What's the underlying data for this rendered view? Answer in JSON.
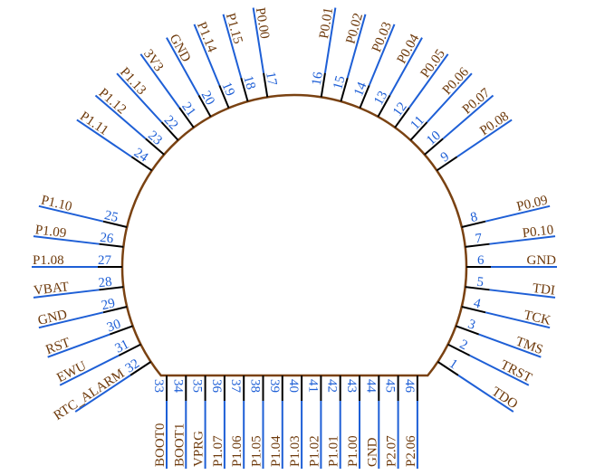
{
  "colors": {
    "body": "#7a4212",
    "label": "#6e3a0c",
    "pin": "#1e5fd6",
    "number": "#1e5fd6",
    "pin_stub": "#000000"
  },
  "pins": [
    {
      "number": "1",
      "label": "TDO"
    },
    {
      "number": "2",
      "label": "TRST"
    },
    {
      "number": "3",
      "label": "TMS"
    },
    {
      "number": "4",
      "label": "TCK"
    },
    {
      "number": "5",
      "label": "TDI"
    },
    {
      "number": "6",
      "label": "GND"
    },
    {
      "number": "7",
      "label": "P0.10"
    },
    {
      "number": "8",
      "label": "P0.09"
    },
    {
      "number": "9",
      "label": "P0.08"
    },
    {
      "number": "10",
      "label": "P0.07"
    },
    {
      "number": "11",
      "label": "P0.06"
    },
    {
      "number": "12",
      "label": "P0.05"
    },
    {
      "number": "13",
      "label": "P0.04"
    },
    {
      "number": "14",
      "label": "P0.03"
    },
    {
      "number": "15",
      "label": "P0.02"
    },
    {
      "number": "16",
      "label": "P0.01"
    },
    {
      "number": "17",
      "label": "P0.00"
    },
    {
      "number": "18",
      "label": "P1.15"
    },
    {
      "number": "19",
      "label": "P1.14"
    },
    {
      "number": "20",
      "label": "GND"
    },
    {
      "number": "21",
      "label": "3V3"
    },
    {
      "number": "22",
      "label": "P1.13"
    },
    {
      "number": "23",
      "label": "P1.12"
    },
    {
      "number": "24",
      "label": "P1.11"
    },
    {
      "number": "25",
      "label": "P1.10"
    },
    {
      "number": "26",
      "label": "P1.09"
    },
    {
      "number": "27",
      "label": "P1.08"
    },
    {
      "number": "28",
      "label": "VBAT"
    },
    {
      "number": "29",
      "label": "GND"
    },
    {
      "number": "30",
      "label": "RST"
    },
    {
      "number": "31",
      "label": "EWU"
    },
    {
      "number": "32",
      "label": "RTC_ALARM"
    },
    {
      "number": "33",
      "label": "BOOT0"
    },
    {
      "number": "34",
      "label": "BOOT1"
    },
    {
      "number": "35",
      "label": "VPRG"
    },
    {
      "number": "36",
      "label": "P1.07"
    },
    {
      "number": "37",
      "label": "P1.06"
    },
    {
      "number": "38",
      "label": "P1.05"
    },
    {
      "number": "39",
      "label": "P1.04"
    },
    {
      "number": "40",
      "label": "P1.03"
    },
    {
      "number": "41",
      "label": "P1.02"
    },
    {
      "number": "42",
      "label": "P1.01"
    },
    {
      "number": "43",
      "label": "P1.00"
    },
    {
      "number": "44",
      "label": "GND"
    },
    {
      "number": "45",
      "label": "P2.07"
    },
    {
      "number": "46",
      "label": "P2.06"
    }
  ]
}
